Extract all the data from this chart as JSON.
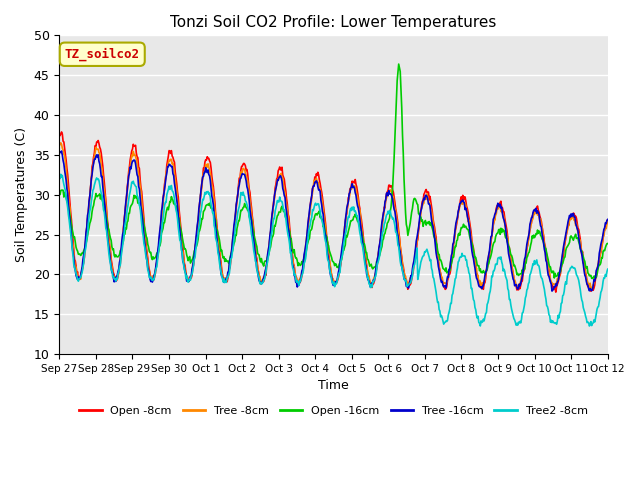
{
  "title": "Tonzi Soil CO2 Profile: Lower Temperatures",
  "xlabel": "Time",
  "ylabel": "Soil Temperatures (C)",
  "ylim": [
    10,
    50
  ],
  "bg_color": "#e8e8e8",
  "annotation_text": "TZ_soilco2",
  "annotation_bg": "#ffffcc",
  "annotation_border": "#aaaa00",
  "annotation_color": "#cc0000",
  "xtick_labels": [
    "Sep 27",
    "Sep 28",
    "Sep 29",
    "Sep 30",
    "Oct 1",
    "Oct 2",
    "Oct 3",
    "Oct 4",
    "Oct 5",
    "Oct 6",
    "Oct 7",
    "Oct 8",
    "Oct 9",
    "Oct 10",
    "Oct 11",
    "Oct 12"
  ],
  "legend_labels": [
    "Open -8cm",
    "Tree -8cm",
    "Open -16cm",
    "Tree -16cm",
    "Tree2 -8cm"
  ],
  "series_colors": [
    "#ff0000",
    "#ff8800",
    "#00cc00",
    "#0000cc",
    "#00cccc"
  ],
  "line_width": 1.2,
  "title_fontsize": 11
}
